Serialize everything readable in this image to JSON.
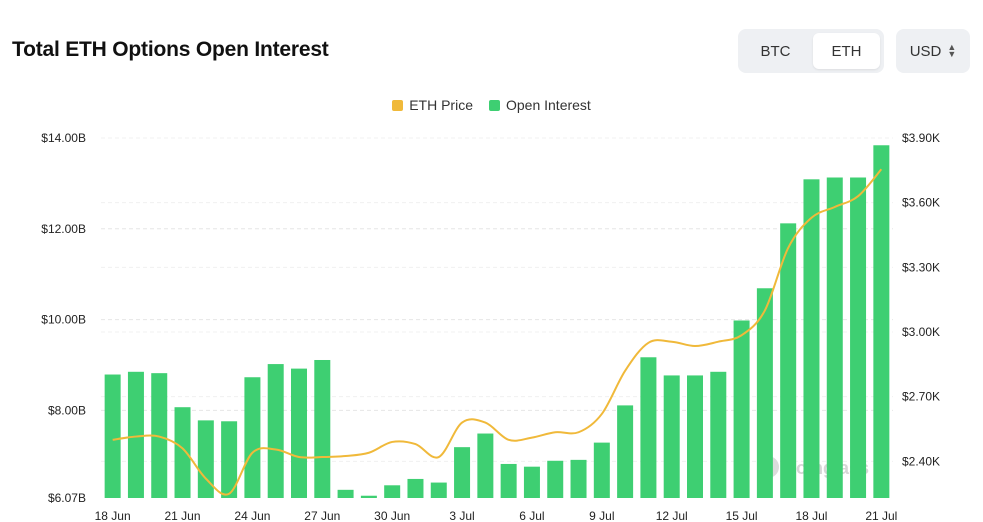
{
  "header": {
    "title": "Total ETH Options Open Interest",
    "asset_options": [
      "BTC",
      "ETH"
    ],
    "selected_asset": "ETH",
    "currency": "USD"
  },
  "legend": {
    "price_label": "ETH Price",
    "oi_label": "Open Interest"
  },
  "watermark": "coinglass",
  "colors": {
    "price_line": "#f0b93a",
    "oi_bar": "#3ecf72",
    "grid": "#e6e6e6"
  },
  "chart_data": {
    "type": "bar",
    "title": "Total ETH Options Open Interest",
    "categories": [
      "18 Jun",
      "19 Jun",
      "20 Jun",
      "21 Jun",
      "22 Jun",
      "23 Jun",
      "24 Jun",
      "25 Jun",
      "26 Jun",
      "27 Jun",
      "28 Jun",
      "29 Jun",
      "30 Jun",
      "1 Jul",
      "2 Jul",
      "3 Jul",
      "4 Jul",
      "5 Jul",
      "6 Jul",
      "7 Jul",
      "8 Jul",
      "9 Jul",
      "10 Jul",
      "11 Jul",
      "12 Jul",
      "13 Jul",
      "14 Jul",
      "15 Jul",
      "16 Jul",
      "17 Jul",
      "18 Jul",
      "19 Jul",
      "20 Jul",
      "21 Jul"
    ],
    "x_tick_labels": [
      "18 Jun",
      "21 Jun",
      "24 Jun",
      "27 Jun",
      "30 Jun",
      "3 Jul",
      "6 Jul",
      "9 Jul",
      "12 Jul",
      "15 Jul",
      "18 Jul",
      "21 Jul"
    ],
    "series": [
      {
        "name": "Open Interest",
        "type": "bar",
        "axis": "left",
        "values": [
          8.79,
          8.85,
          8.82,
          8.07,
          7.78,
          7.76,
          8.73,
          9.02,
          8.92,
          9.11,
          6.25,
          6.12,
          6.35,
          6.49,
          6.41,
          7.19,
          7.49,
          6.82,
          6.76,
          6.89,
          6.91,
          7.29,
          8.11,
          9.17,
          8.77,
          8.77,
          8.85,
          9.98,
          10.69,
          12.12,
          13.09,
          13.13,
          13.13,
          13.84
        ]
      },
      {
        "name": "ETH Price",
        "type": "line",
        "axis": "right",
        "values": [
          2500,
          2515,
          2515,
          2460,
          2320,
          2250,
          2440,
          2455,
          2420,
          2420,
          2425,
          2440,
          2490,
          2480,
          2420,
          2580,
          2580,
          2500,
          2510,
          2535,
          2535,
          2620,
          2820,
          2950,
          2955,
          2935,
          2955,
          2985,
          3100,
          3390,
          3530,
          3580,
          3630,
          3755
        ]
      }
    ],
    "y_left": {
      "ticks": [
        "$6.07B",
        "$8.00B",
        "$10.00B",
        "$12.00B",
        "$14.00B"
      ],
      "ylim": [
        6.07,
        14.0
      ]
    },
    "y_right": {
      "ticks": [
        "$2.40K",
        "$2.70K",
        "$3.00K",
        "$3.30K",
        "$3.60K",
        "$3.90K"
      ],
      "ylim": [
        2230,
        3900
      ]
    },
    "grid": true,
    "legend_position": "top-center"
  }
}
